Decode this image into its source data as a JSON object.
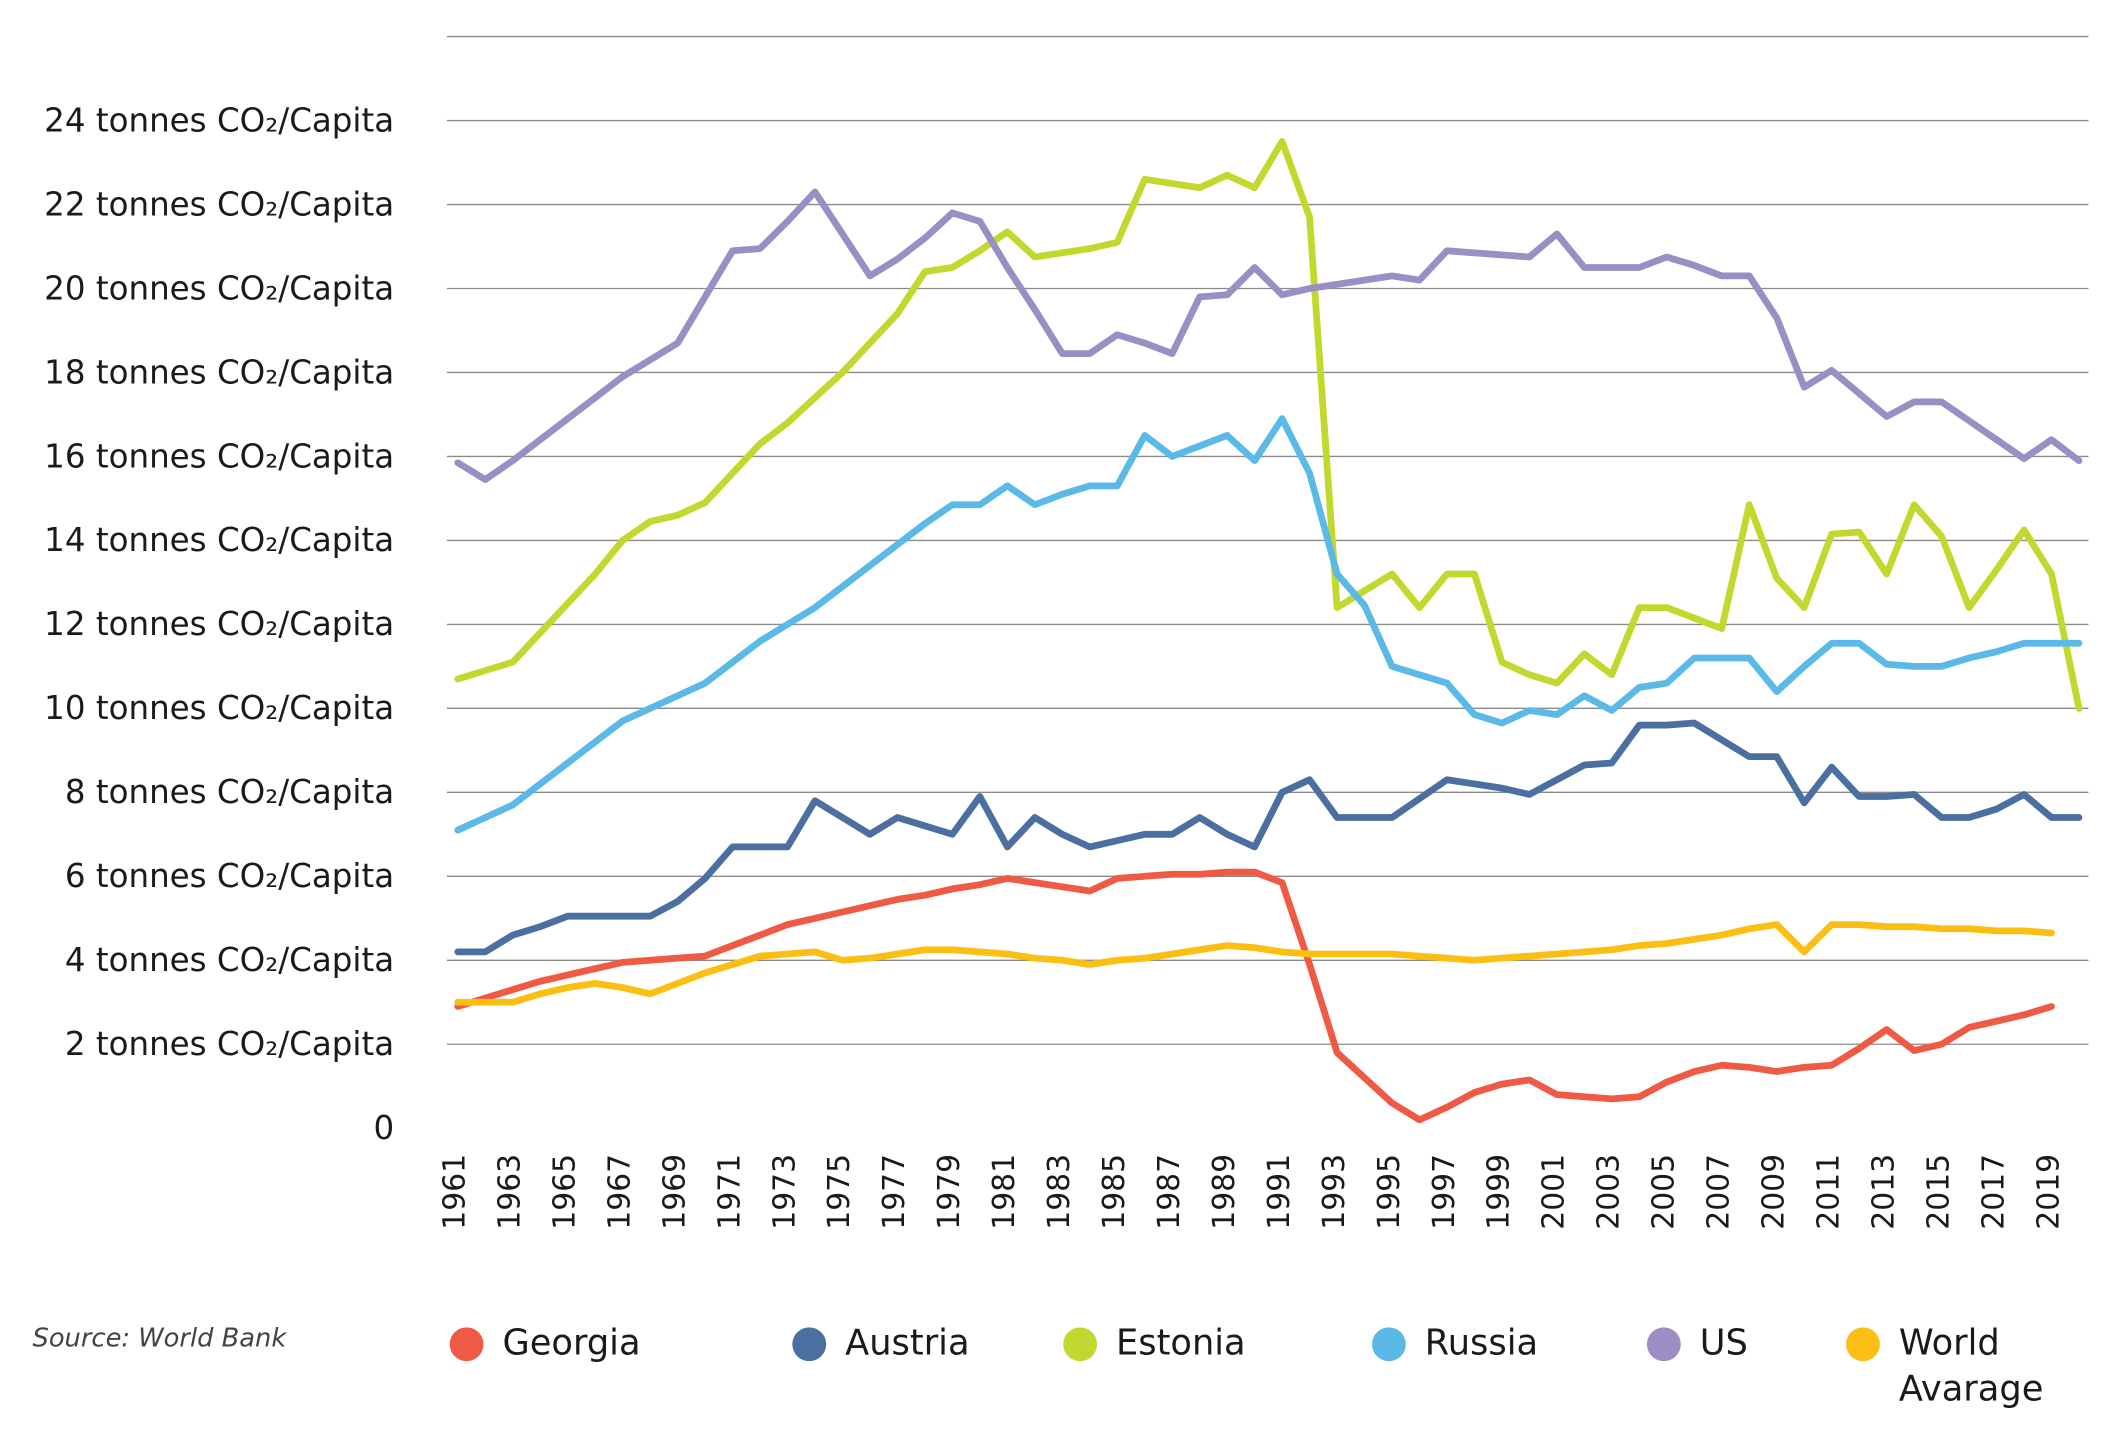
{
  "chart_data": {
    "type": "line",
    "source": "Source: World Bank",
    "x": [
      1961,
      1962,
      1963,
      1964,
      1965,
      1966,
      1967,
      1968,
      1969,
      1970,
      1971,
      1972,
      1973,
      1974,
      1975,
      1976,
      1977,
      1978,
      1979,
      1980,
      1981,
      1982,
      1983,
      1984,
      1985,
      1986,
      1987,
      1988,
      1989,
      1990,
      1991,
      1992,
      1993,
      1994,
      1995,
      1996,
      1997,
      1998,
      1999,
      2000,
      2001,
      2002,
      2003,
      2004,
      2005,
      2006,
      2007,
      2008,
      2009,
      2010,
      2011,
      2012,
      2013,
      2014,
      2015,
      2016,
      2017,
      2018,
      2019,
      2020
    ],
    "xlim": [
      1961,
      2020
    ],
    "xticks": [
      1961,
      1963,
      1965,
      1967,
      1969,
      1971,
      1973,
      1975,
      1977,
      1979,
      1981,
      1983,
      1985,
      1987,
      1989,
      1991,
      1993,
      1995,
      1997,
      1999,
      2001,
      2003,
      2005,
      2007,
      2009,
      2011,
      2013,
      2015,
      2017,
      2019
    ],
    "ylim": [
      0,
      26
    ],
    "yticks": [
      0,
      {
        "value": 2,
        "label": "2 tonnes CO₂/Capita"
      },
      {
        "value": 4,
        "label": "4 tonnes CO₂/Capita"
      },
      {
        "value": 6,
        "label": "6 tonnes CO₂/Capita"
      },
      {
        "value": 8,
        "label": "8 tonnes CO₂/Capita"
      },
      {
        "value": 10,
        "label": "10 tonnes CO₂/Capita"
      },
      {
        "value": 12,
        "label": "12 tonnes CO₂/Capita"
      },
      {
        "value": 14,
        "label": "14 tonnes CO₂/Capita"
      },
      {
        "value": 16,
        "label": "16 tonnes CO₂/Capita"
      },
      {
        "value": 18,
        "label": "18 tonnes CO₂/Capita"
      },
      {
        "value": 20,
        "label": "20 tonnes CO₂/Capita"
      },
      {
        "value": 22,
        "label": "22 tonnes CO₂/Capita"
      },
      {
        "value": 24,
        "label": "24 tonnes CO₂/Capita"
      }
    ],
    "grid": true,
    "legend": "bottom",
    "series": [
      {
        "name": "Georgia",
        "color": "#ef5a44",
        "values": [
          2.9,
          3.1,
          3.3,
          3.5,
          3.65,
          3.8,
          3.95,
          4.0,
          4.05,
          4.1,
          4.35,
          4.6,
          4.85,
          5.0,
          5.15,
          5.3,
          5.45,
          5.55,
          5.7,
          5.8,
          5.95,
          5.85,
          5.75,
          5.65,
          5.95,
          6.0,
          6.05,
          6.05,
          6.1,
          6.1,
          5.85,
          3.9,
          1.8,
          1.2,
          0.6,
          0.2,
          0.5,
          0.85,
          1.05,
          1.15,
          0.8,
          0.75,
          0.7,
          0.75,
          1.1,
          1.35,
          1.5,
          1.45,
          1.35,
          1.45,
          1.5,
          1.9,
          2.35,
          1.85,
          2.0,
          2.4,
          2.55,
          2.7,
          2.9,
          null
        ]
      },
      {
        "name": "Austria",
        "color": "#4a6fa0",
        "values": [
          4.2,
          4.2,
          4.6,
          4.8,
          5.05,
          5.05,
          5.05,
          5.05,
          5.4,
          5.95,
          6.7,
          6.7,
          6.7,
          7.8,
          7.4,
          7.0,
          7.4,
          7.2,
          7.0,
          7.9,
          6.7,
          7.4,
          7.0,
          6.7,
          6.85,
          7.0,
          7.0,
          7.4,
          7.0,
          6.7,
          8.0,
          8.3,
          7.4,
          7.4,
          7.4,
          7.85,
          8.3,
          8.2,
          8.1,
          7.95,
          8.3,
          8.65,
          8.7,
          9.6,
          9.6,
          9.65,
          9.25,
          8.85,
          8.85,
          7.75,
          8.6,
          7.9,
          7.9,
          7.95,
          7.4,
          7.4,
          7.6,
          7.95,
          7.4,
          7.4
        ]
      },
      {
        "name": "Estonia",
        "color": "#c3d82e",
        "values": [
          10.7,
          10.9,
          11.1,
          11.8,
          12.5,
          13.2,
          14.0,
          14.45,
          14.6,
          14.9,
          15.6,
          16.3,
          16.8,
          17.4,
          18.0,
          18.7,
          19.4,
          20.4,
          20.5,
          20.9,
          21.35,
          20.75,
          20.85,
          20.95,
          21.1,
          22.6,
          22.5,
          22.4,
          22.7,
          22.4,
          23.5,
          21.7,
          12.4,
          12.8,
          13.2,
          12.4,
          13.2,
          13.2,
          11.1,
          10.8,
          10.6,
          11.3,
          10.8,
          12.4,
          12.4,
          12.15,
          11.9,
          14.85,
          13.1,
          12.4,
          14.15,
          14.2,
          13.2,
          14.85,
          14.1,
          12.4,
          13.3,
          14.25,
          13.2,
          10.0
        ]
      },
      {
        "name": "Russia",
        "color": "#5bb9e8",
        "values": [
          7.1,
          7.4,
          7.7,
          8.2,
          8.7,
          9.2,
          9.7,
          10.0,
          10.3,
          10.6,
          11.1,
          11.6,
          12.0,
          12.4,
          12.9,
          13.4,
          13.9,
          14.4,
          14.85,
          14.85,
          15.3,
          14.85,
          15.1,
          15.3,
          15.3,
          16.5,
          16.0,
          16.25,
          16.5,
          15.9,
          16.9,
          15.6,
          13.2,
          12.45,
          11.0,
          10.8,
          10.6,
          9.85,
          9.65,
          9.95,
          9.85,
          10.3,
          9.95,
          10.5,
          10.6,
          11.2,
          11.2,
          11.2,
          10.4,
          11.0,
          11.55,
          11.55,
          11.05,
          11.0,
          11.0,
          11.2,
          11.35,
          11.55,
          11.55,
          11.55
        ]
      },
      {
        "name": "US",
        "color": "#9b8ec4",
        "values": [
          15.85,
          15.45,
          15.9,
          16.4,
          16.9,
          17.4,
          17.9,
          18.3,
          18.7,
          19.8,
          20.9,
          20.95,
          21.6,
          22.3,
          21.3,
          20.3,
          20.7,
          21.2,
          21.8,
          21.6,
          20.5,
          19.5,
          18.45,
          18.45,
          18.9,
          18.7,
          18.45,
          19.8,
          19.85,
          20.5,
          19.85,
          20.0,
          20.1,
          20.2,
          20.3,
          20.2,
          20.9,
          20.85,
          20.8,
          20.75,
          21.3,
          20.5,
          20.5,
          20.5,
          20.75,
          20.55,
          20.3,
          20.3,
          19.3,
          17.65,
          18.05,
          17.5,
          16.95,
          17.3,
          17.3,
          16.85,
          16.4,
          15.95,
          16.4,
          15.9
        ]
      },
      {
        "name": "World Avarage",
        "color": "#fbbf14",
        "values": [
          3.0,
          3.0,
          3.0,
          3.2,
          3.35,
          3.45,
          3.35,
          3.2,
          3.45,
          3.7,
          3.9,
          4.1,
          4.15,
          4.2,
          4.0,
          4.05,
          4.15,
          4.25,
          4.25,
          4.2,
          4.15,
          4.05,
          4.0,
          3.9,
          4.0,
          4.05,
          4.15,
          4.25,
          4.35,
          4.3,
          4.2,
          4.15,
          4.15,
          4.15,
          4.15,
          4.1,
          4.05,
          4.0,
          4.05,
          4.1,
          4.15,
          4.2,
          4.25,
          4.35,
          4.4,
          4.5,
          4.6,
          4.75,
          4.85,
          4.2,
          4.85,
          4.85,
          4.8,
          4.8,
          4.75,
          4.75,
          4.7,
          4.7,
          4.65,
          null
        ]
      }
    ]
  }
}
